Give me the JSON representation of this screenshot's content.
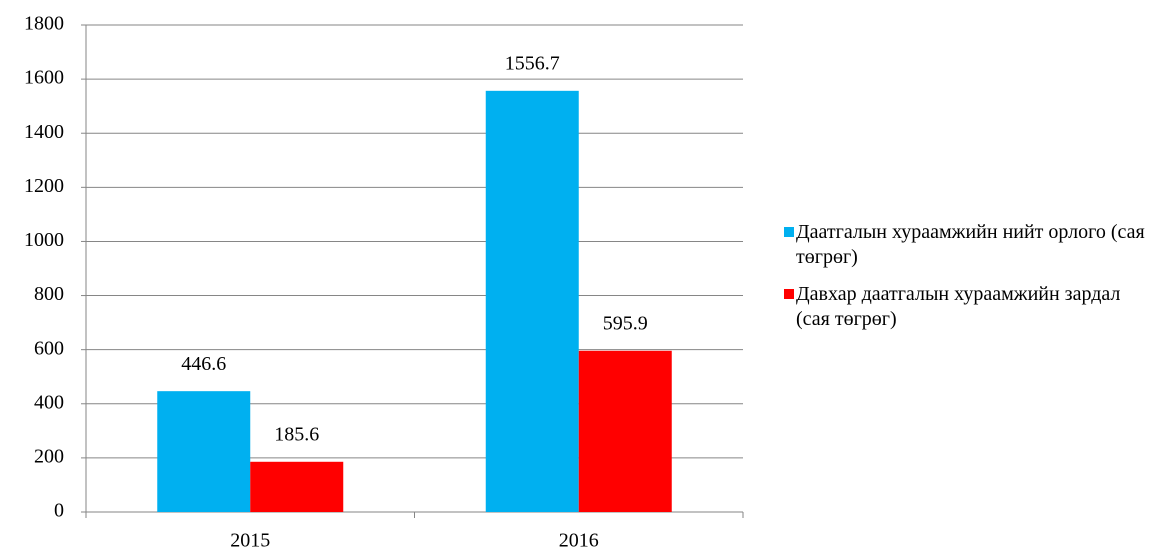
{
  "chart_data": {
    "type": "bar",
    "categories": [
      "2015",
      "2016"
    ],
    "series": [
      {
        "name": "Даатгалын хураамжийн нийт орлого (сая төгрөг)",
        "color": "#00b0f0",
        "values": [
          446.6,
          1556.7
        ]
      },
      {
        "name": "Давхар даатгалын хураамжийн зардал (сая төгрөг)",
        "color": "#ff0000",
        "values": [
          185.6,
          595.9
        ]
      }
    ],
    "ylim": [
      0,
      1800
    ],
    "yticks": [
      0,
      200,
      400,
      600,
      800,
      1000,
      1200,
      1400,
      1600,
      1800
    ],
    "grid": true,
    "legend": "right"
  }
}
